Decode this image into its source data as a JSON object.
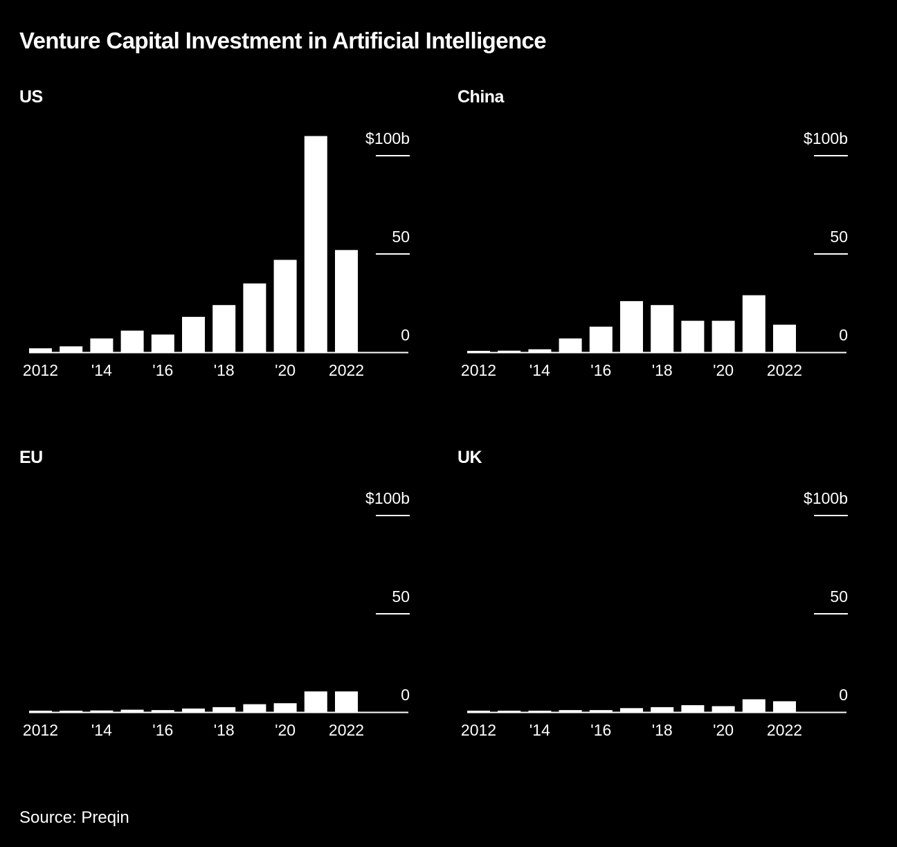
{
  "title": "Venture Capital Investment in Artificial Intelligence",
  "source": "Source: Preqin",
  "colors": {
    "background": "#000000",
    "bars": "#ffffff",
    "text": "#ffffff"
  },
  "chart_data": [
    {
      "type": "bar",
      "title": "US",
      "categories": [
        "2012",
        "2013",
        "2014",
        "2015",
        "2016",
        "2017",
        "2018",
        "2019",
        "2020",
        "2021",
        "2022"
      ],
      "values": [
        2,
        3,
        7,
        11,
        9,
        18,
        24,
        35,
        47,
        110,
        52
      ],
      "x_tick_labels": [
        "2012",
        "'14",
        "'16",
        "'18",
        "'20",
        "2022"
      ],
      "y_tick_labels": [
        "$100b",
        "50",
        "0"
      ],
      "y_ticks": [
        100,
        50,
        0
      ],
      "ylim": [
        0,
        110
      ],
      "grid": false
    },
    {
      "type": "bar",
      "title": "China",
      "categories": [
        "2012",
        "2013",
        "2014",
        "2015",
        "2016",
        "2017",
        "2018",
        "2019",
        "2020",
        "2021",
        "2022"
      ],
      "values": [
        0.5,
        0.8,
        1.5,
        7,
        13,
        26,
        24,
        16,
        16,
        29,
        14
      ],
      "x_tick_labels": [
        "2012",
        "'14",
        "'16",
        "'18",
        "'20",
        "2022"
      ],
      "y_tick_labels": [
        "$100b",
        "50",
        "0"
      ],
      "y_ticks": [
        100,
        50,
        0
      ],
      "ylim": [
        0,
        110
      ],
      "grid": false
    },
    {
      "type": "bar",
      "title": "EU",
      "categories": [
        "2012",
        "2013",
        "2014",
        "2015",
        "2016",
        "2017",
        "2018",
        "2019",
        "2020",
        "2021",
        "2022"
      ],
      "values": [
        0.3,
        0.5,
        0.8,
        1.2,
        1.0,
        1.8,
        2.5,
        4,
        4.5,
        10.5,
        10.5
      ],
      "x_tick_labels": [
        "2012",
        "'14",
        "'16",
        "'18",
        "'20",
        "2022"
      ],
      "y_tick_labels": [
        "$100b",
        "50",
        "0"
      ],
      "y_ticks": [
        100,
        50,
        0
      ],
      "ylim": [
        0,
        110
      ],
      "grid": false
    },
    {
      "type": "bar",
      "title": "UK",
      "categories": [
        "2012",
        "2013",
        "2014",
        "2015",
        "2016",
        "2017",
        "2018",
        "2019",
        "2020",
        "2021",
        "2022"
      ],
      "values": [
        0.3,
        0.5,
        0.7,
        1.0,
        1.0,
        2.0,
        2.5,
        3.5,
        3.0,
        6.5,
        5.5
      ],
      "x_tick_labels": [
        "2012",
        "'14",
        "'16",
        "'18",
        "'20",
        "2022"
      ],
      "y_tick_labels": [
        "$100b",
        "50",
        "0"
      ],
      "y_ticks": [
        100,
        50,
        0
      ],
      "ylim": [
        0,
        110
      ],
      "grid": false
    }
  ]
}
